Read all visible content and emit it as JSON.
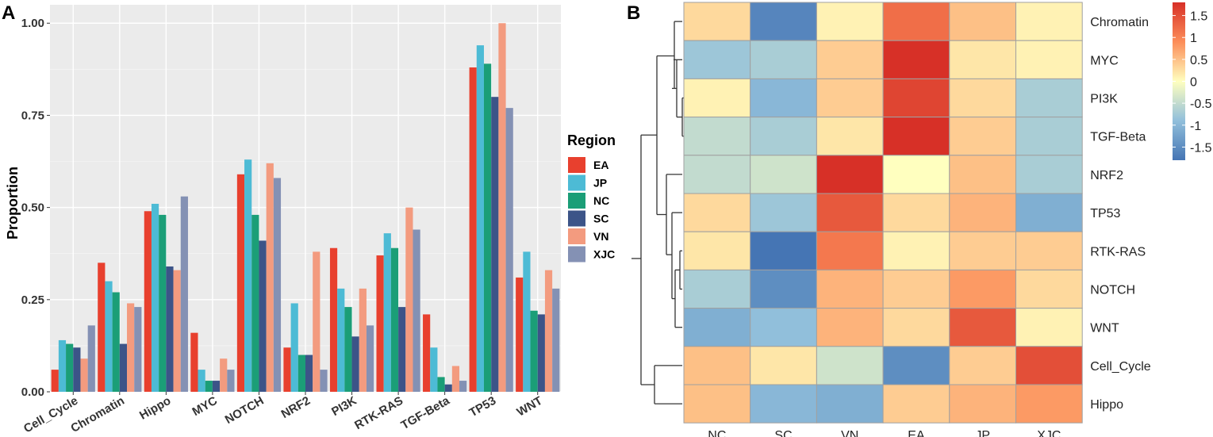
{
  "panels": {
    "a": "A",
    "b": "B"
  },
  "chart_data": [
    {
      "type": "bar",
      "title": "",
      "xlabel": "",
      "ylabel": "Proportion",
      "ylim": [
        0,
        1.05
      ],
      "yticks": [
        "0.00",
        "0.25",
        "0.50",
        "0.75",
        "1.00"
      ],
      "ytick_values": [
        0,
        0.25,
        0.5,
        0.75,
        1.0
      ],
      "grid": true,
      "legend_title": "Region",
      "legend_position": "right",
      "categories": [
        "Cell_Cycle",
        "Chromatin",
        "Hippo",
        "MYC",
        "NOTCH",
        "NRF2",
        "PI3K",
        "RTK-RAS",
        "TGF-Beta",
        "TP53",
        "WNT"
      ],
      "series": [
        {
          "name": "EA",
          "color": "#E8402E",
          "values": [
            0.06,
            0.35,
            0.49,
            0.16,
            0.59,
            0.12,
            0.39,
            0.37,
            0.21,
            0.88,
            0.31
          ]
        },
        {
          "name": "JP",
          "color": "#4DBBD5",
          "values": [
            0.14,
            0.3,
            0.51,
            0.06,
            0.63,
            0.24,
            0.28,
            0.43,
            0.12,
            0.94,
            0.38
          ]
        },
        {
          "name": "NC",
          "color": "#1B9E77",
          "values": [
            0.13,
            0.27,
            0.48,
            0.03,
            0.48,
            0.1,
            0.23,
            0.39,
            0.04,
            0.89,
            0.22
          ]
        },
        {
          "name": "SC",
          "color": "#3C5488",
          "values": [
            0.12,
            0.13,
            0.34,
            0.03,
            0.41,
            0.1,
            0.15,
            0.23,
            0.02,
            0.8,
            0.21
          ]
        },
        {
          "name": "VN",
          "color": "#F39B7F",
          "values": [
            0.09,
            0.24,
            0.33,
            0.09,
            0.62,
            0.38,
            0.28,
            0.5,
            0.07,
            1.0,
            0.33
          ]
        },
        {
          "name": "XJC",
          "color": "#8491B4",
          "values": [
            0.18,
            0.23,
            0.53,
            0.06,
            0.58,
            0.06,
            0.18,
            0.44,
            0.03,
            0.77,
            0.28
          ]
        }
      ]
    },
    {
      "type": "heatmap",
      "title": "",
      "columns": [
        "NC",
        "SC",
        "VN",
        "EA",
        "JP",
        "XJC"
      ],
      "rows": [
        "Chromatin",
        "MYC",
        "PI3K",
        "TGF-Beta",
        "NRF2",
        "TP53",
        "RTK-RAS",
        "NOTCH",
        "WNT",
        "Cell_Cycle",
        "Hippo"
      ],
      "values": [
        [
          0.3,
          -1.6,
          0.1,
          1.2,
          0.5,
          0.1
        ],
        [
          -0.8,
          -0.7,
          0.4,
          1.8,
          0.2,
          0.1
        ],
        [
          0.1,
          -1.0,
          0.4,
          1.6,
          0.3,
          -0.7
        ],
        [
          -0.5,
          -0.7,
          0.2,
          1.8,
          0.4,
          -0.7
        ],
        [
          -0.5,
          -0.4,
          1.8,
          0.0,
          0.5,
          -0.7
        ],
        [
          0.3,
          -0.8,
          1.4,
          0.3,
          0.6,
          -1.1
        ],
        [
          0.2,
          -1.8,
          1.1,
          0.1,
          0.4,
          0.4
        ],
        [
          -0.7,
          -1.5,
          0.6,
          0.4,
          0.8,
          0.3
        ],
        [
          -1.1,
          -0.9,
          0.6,
          0.3,
          1.4,
          0.1
        ],
        [
          0.5,
          0.2,
          -0.4,
          -1.5,
          0.4,
          1.5
        ],
        [
          0.5,
          -1.0,
          -1.1,
          0.4,
          0.6,
          0.8
        ]
      ],
      "color_scale": {
        "low": "#4575B4",
        "mid": "#FFFFBF",
        "high": "#D73027",
        "range": [
          -1.8,
          1.8
        ]
      },
      "colorbar_ticks": [
        "1.5",
        "1",
        "0.5",
        "0",
        "-0.5",
        "-1",
        "-1.5"
      ],
      "colorbar_tick_values": [
        1.5,
        1,
        0.5,
        0,
        -0.5,
        -1,
        -1.5
      ],
      "row_dendrogram": true,
      "legend_position": "right"
    }
  ]
}
